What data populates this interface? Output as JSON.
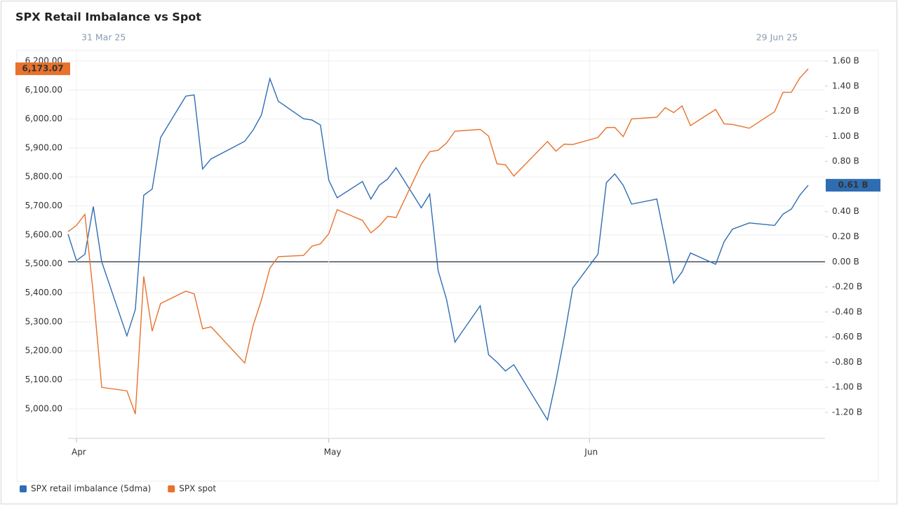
{
  "chart_data": {
    "type": "line",
    "title": "SPX Retail Imbalance vs Spot",
    "range_labels": [
      "31 Mar 25",
      "29 Jun 25"
    ],
    "x": [
      "2025-03-31",
      "2025-04-01",
      "2025-04-02",
      "2025-04-03",
      "2025-04-04",
      "2025-04-07",
      "2025-04-08",
      "2025-04-09",
      "2025-04-10",
      "2025-04-11",
      "2025-04-14",
      "2025-04-15",
      "2025-04-16",
      "2025-04-17",
      "2025-04-21",
      "2025-04-22",
      "2025-04-23",
      "2025-04-24",
      "2025-04-25",
      "2025-04-28",
      "2025-04-29",
      "2025-04-30",
      "2025-05-01",
      "2025-05-02",
      "2025-05-05",
      "2025-05-06",
      "2025-05-07",
      "2025-05-08",
      "2025-05-09",
      "2025-05-12",
      "2025-05-13",
      "2025-05-14",
      "2025-05-15",
      "2025-05-16",
      "2025-05-19",
      "2025-05-20",
      "2025-05-21",
      "2025-05-22",
      "2025-05-23",
      "2025-05-27",
      "2025-05-28",
      "2025-05-29",
      "2025-05-30",
      "2025-06-02",
      "2025-06-03",
      "2025-06-04",
      "2025-06-05",
      "2025-06-06",
      "2025-06-09",
      "2025-06-10",
      "2025-06-11",
      "2025-06-12",
      "2025-06-13",
      "2025-06-16",
      "2025-06-17",
      "2025-06-18",
      "2025-06-20",
      "2025-06-23",
      "2025-06-24",
      "2025-06-25",
      "2025-06-26",
      "2025-06-27"
    ],
    "xlim": [
      "2025-03-31",
      "2025-06-29"
    ],
    "xticks": [
      {
        "value": "2025-04-01",
        "label": "Apr"
      },
      {
        "value": "2025-05-01",
        "label": "May"
      },
      {
        "value": "2025-06-01",
        "label": "Jun"
      }
    ],
    "series": [
      {
        "name": "SPX retail imbalance (5dma)",
        "color": "#2f6db3",
        "axis": "y2",
        "values": [
          0.22,
          0.01,
          0.06,
          0.44,
          0.0,
          -0.59,
          -0.38,
          0.53,
          0.58,
          0.99,
          1.32,
          1.33,
          0.74,
          0.82,
          0.96,
          1.05,
          1.17,
          1.46,
          1.28,
          1.14,
          1.13,
          1.09,
          0.65,
          0.51,
          0.64,
          0.5,
          0.61,
          0.66,
          0.75,
          0.43,
          0.54,
          -0.07,
          -0.3,
          -0.64,
          -0.35,
          -0.74,
          -0.8,
          -0.87,
          -0.82,
          -1.26,
          -0.95,
          -0.6,
          -0.21,
          0.06,
          0.63,
          0.7,
          0.61,
          0.46,
          0.5,
          0.17,
          -0.17,
          -0.08,
          0.07,
          -0.02,
          0.16,
          0.26,
          0.31,
          0.29,
          0.38,
          0.42,
          0.53,
          0.61
        ],
        "value_labels": [
          null,
          null,
          null,
          null,
          null,
          null,
          null,
          null,
          null,
          null,
          null,
          null,
          null,
          null,
          null,
          null,
          null,
          null,
          null,
          null,
          null,
          null,
          null,
          null,
          null,
          null,
          null,
          null,
          null,
          null,
          null,
          null,
          null,
          null,
          null,
          null,
          null,
          null,
          null,
          null,
          null,
          null,
          null,
          null,
          null,
          null,
          null,
          null,
          null,
          null,
          null,
          null,
          null,
          null,
          null,
          null,
          null,
          null,
          null,
          null,
          null,
          "0.61 B"
        ]
      },
      {
        "name": "SPX spot",
        "color": "#e8722c",
        "axis": "y",
        "values": [
          5611,
          5633,
          5671,
          5396,
          5074,
          5062,
          4982,
          5457,
          5268,
          5363,
          5406,
          5397,
          5276,
          5283,
          5158,
          5287,
          5376,
          5485,
          5525,
          5529,
          5561,
          5569,
          5604,
          5687,
          5650,
          5607,
          5631,
          5664,
          5660,
          5844,
          5887,
          5892,
          5917,
          5958,
          5964,
          5941,
          5845,
          5842,
          5803,
          5922,
          5889,
          5913,
          5912,
          5936,
          5970,
          5971,
          5939,
          6000,
          6006,
          6039,
          6022,
          6045,
          5977,
          6033,
          5983,
          5981,
          5968,
          6025,
          6092,
          6092,
          6141,
          6173.07
        ],
        "value_labels": [
          null,
          null,
          null,
          null,
          null,
          null,
          null,
          null,
          null,
          null,
          null,
          null,
          null,
          null,
          null,
          null,
          null,
          null,
          null,
          null,
          null,
          null,
          null,
          null,
          null,
          null,
          null,
          null,
          null,
          null,
          null,
          null,
          null,
          null,
          null,
          null,
          null,
          null,
          null,
          null,
          null,
          null,
          null,
          null,
          null,
          null,
          null,
          null,
          null,
          null,
          null,
          null,
          null,
          null,
          null,
          null,
          null,
          null,
          null,
          null,
          null,
          "6,173.07"
        ]
      }
    ],
    "ylim": [
      4898,
      6241
    ],
    "yticks": [
      {
        "value": 5000,
        "label": "5,000.00"
      },
      {
        "value": 5100,
        "label": "5,100.00"
      },
      {
        "value": 5200,
        "label": "5,200.00"
      },
      {
        "value": 5300,
        "label": "5,300.00"
      },
      {
        "value": 5400,
        "label": "5,400.00"
      },
      {
        "value": 5500,
        "label": "5,500.00"
      },
      {
        "value": 5600,
        "label": "5,600.00"
      },
      {
        "value": 5700,
        "label": "5,700.00"
      },
      {
        "value": 5800,
        "label": "5,800.00"
      },
      {
        "value": 5900,
        "label": "5,900.00"
      },
      {
        "value": 6000,
        "label": "6,000.00"
      },
      {
        "value": 6100,
        "label": "6,100.00"
      },
      {
        "value": 6200,
        "label": "6,200.00"
      }
    ],
    "y2lim": [
      -1.407,
      1.695
    ],
    "y2ticks": [
      {
        "value": -1.2,
        "label": "-1.20 B"
      },
      {
        "value": -1.0,
        "label": "-1.00 B"
      },
      {
        "value": -0.8,
        "label": "-0.80 B"
      },
      {
        "value": -0.6,
        "label": "-0.60 B"
      },
      {
        "value": -0.4,
        "label": "-0.40 B"
      },
      {
        "value": -0.2,
        "label": "-0.20 B"
      },
      {
        "value": 0,
        "label": "0.00 B"
      },
      {
        "value": 0.2,
        "label": "0.20 B"
      },
      {
        "value": 0.4,
        "label": "0.40 B"
      },
      {
        "value": 0.6,
        "label": "0.60 B"
      },
      {
        "value": 0.8,
        "label": "0.80 B"
      },
      {
        "value": 1.0,
        "label": "1.00 B"
      },
      {
        "value": 1.2,
        "label": "1.20 B"
      },
      {
        "value": 1.4,
        "label": "1.40 B"
      },
      {
        "value": 1.6,
        "label": "1.60 B"
      }
    ],
    "grid": true,
    "legend": "bottom-left"
  }
}
